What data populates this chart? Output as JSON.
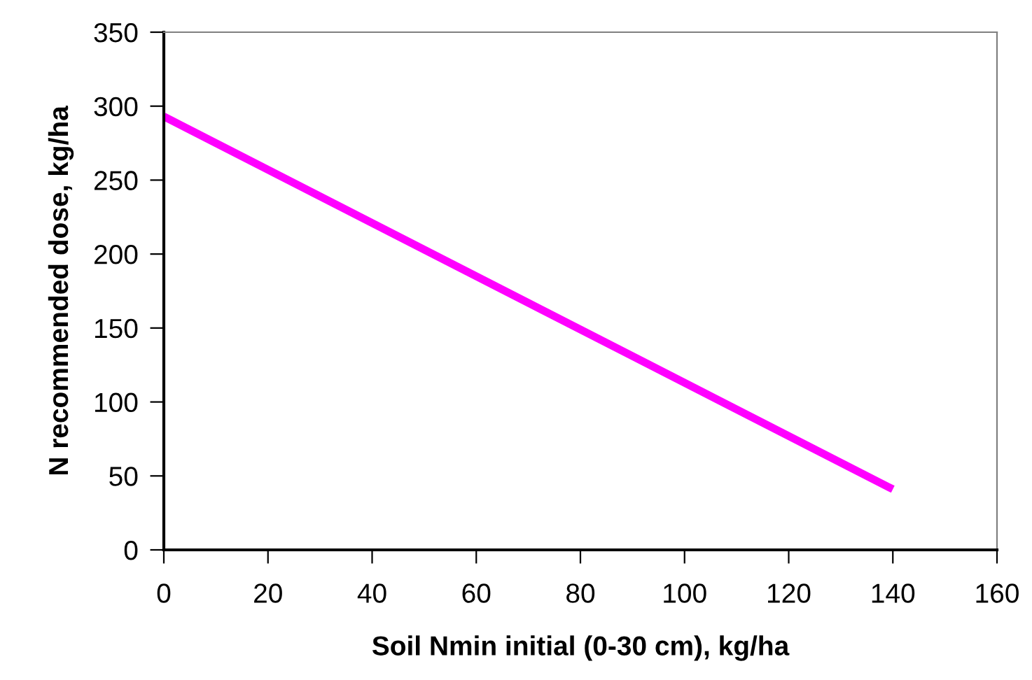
{
  "chart_data": {
    "type": "line",
    "xlabel": "Soil Nmin initial (0-30 cm), kg/ha",
    "ylabel": "N recommended dose, kg/ha",
    "x": [
      0,
      140
    ],
    "series": [
      {
        "color": "#ff00ff",
        "values": [
          293,
          41
        ]
      }
    ],
    "xlim": [
      0,
      160
    ],
    "xticks": [
      0,
      20,
      40,
      60,
      80,
      100,
      120,
      140,
      160
    ],
    "ylim": [
      0,
      350
    ],
    "yticks": [
      0,
      50,
      100,
      150,
      200,
      250,
      300,
      350
    ],
    "grid": false,
    "legend": false,
    "marker": "none",
    "line_style": "solid"
  }
}
